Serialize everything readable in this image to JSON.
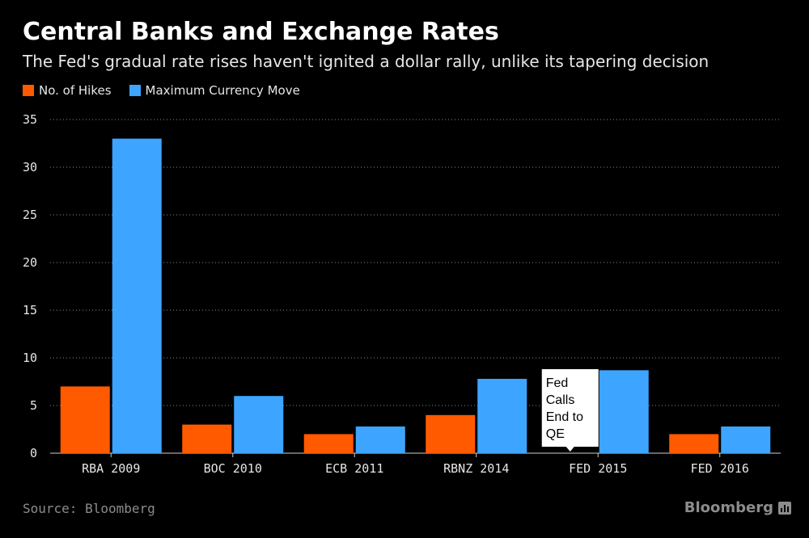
{
  "header": {
    "title": "Central Banks and Exchange Rates",
    "subtitle": "The Fed's gradual rate rises haven't ignited a dollar rally, unlike its tapering decision"
  },
  "legend": [
    {
      "label": "No. of Hikes",
      "color": "#ff5a00"
    },
    {
      "label": "Maximum Currency Move",
      "color": "#3da5ff"
    }
  ],
  "footer": {
    "source": "Source: Bloomberg",
    "brand": "Bloomberg",
    "brand_icon": "bar-chart-icon"
  },
  "chart_data": {
    "type": "bar",
    "categories": [
      "RBA 2009",
      "BOC 2010",
      "ECB 2011",
      "RBNZ 2014",
      "FED 2015",
      "FED 2016"
    ],
    "series": [
      {
        "name": "No. of Hikes",
        "color": "#ff5a00",
        "values": [
          7,
          3,
          2,
          4,
          null,
          2
        ]
      },
      {
        "name": "Maximum Currency Move",
        "color": "#3da5ff",
        "values": [
          33,
          6,
          2.8,
          7.8,
          8.7,
          2.8
        ]
      }
    ],
    "ylim": [
      0,
      35
    ],
    "yticks": [
      0,
      5,
      10,
      15,
      20,
      25,
      30,
      35
    ],
    "grid": true,
    "annotations": [
      {
        "category": "FED 2015",
        "series": "No. of Hikes",
        "text": "Fed Calls End to QE",
        "lines": [
          "Fed",
          "Calls",
          "End to",
          "QE"
        ]
      }
    ]
  }
}
